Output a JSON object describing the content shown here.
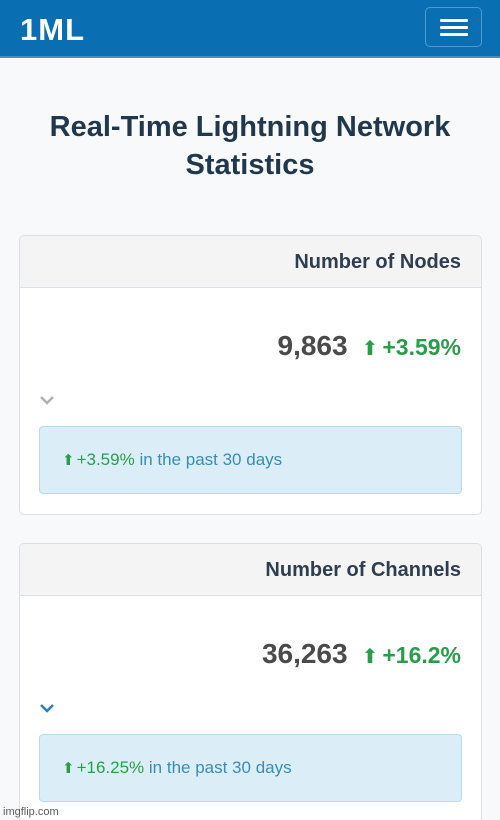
{
  "nav": {
    "brand": "1ML"
  },
  "page": {
    "title": "Real-Time Lightning Network Statistics"
  },
  "cards": [
    {
      "header": "Number of Nodes",
      "value": "9,863",
      "change": "+3.59%",
      "detail": {
        "pct": "+3.59%",
        "text": " in the past 30 days"
      }
    },
    {
      "header": "Number of Channels",
      "value": "36,263",
      "change": "+16.2%",
      "detail": {
        "pct": "+16.25%",
        "text": " in the past 30 days"
      }
    }
  ],
  "colors": {
    "navbar": "#0a6fb2",
    "positive": "#2a9d4a",
    "info_text": "#3b8bb2",
    "info_bg": "#dbeef7"
  },
  "icons": {
    "menu": "hamburger-menu-icon",
    "up": "arrow-up-icon",
    "expand": "chevron-down-icon"
  },
  "watermark": "imgflip.com"
}
